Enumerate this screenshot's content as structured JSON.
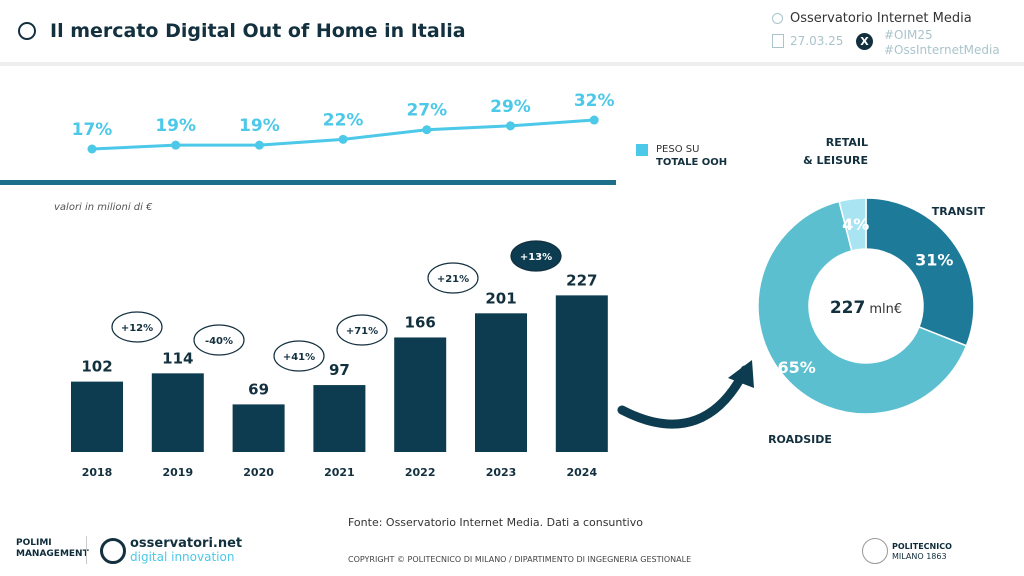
{
  "header": {
    "title": "Il mercato Digital Out of Home in Italia",
    "org": "Osservatorio Internet Media",
    "date": "27.03.25",
    "hashtag1": "#OIM25",
    "hashtag2": "#OssInternetMedia"
  },
  "colors": {
    "dark": "#0d3b4f",
    "line": "#4cc8e8",
    "transit": "#1e7a99",
    "roadside": "#5bbfd0",
    "retail": "#a8e4f2"
  },
  "chart_data": [
    {
      "type": "line",
      "x": [
        "2018",
        "2019",
        "2020",
        "2021",
        "2022",
        "2023",
        "2024"
      ],
      "values": [
        17,
        19,
        19,
        22,
        27,
        29,
        32
      ],
      "labels": [
        "17%",
        "19%",
        "19%",
        "22%",
        "27%",
        "29%",
        "32%"
      ],
      "legend": "PESO SU TOTALE OOH",
      "legend_line1": "PESO SU",
      "legend_line2": "TOTALE OOH"
    },
    {
      "type": "bar",
      "categories": [
        "2018",
        "2019",
        "2020",
        "2021",
        "2022",
        "2023",
        "2024"
      ],
      "values": [
        102,
        114,
        69,
        97,
        166,
        201,
        227
      ],
      "growth": [
        "+12%",
        "-40%",
        "+41%",
        "+71%",
        "+21%",
        "+13%"
      ],
      "unit_note": "valori in milioni di €"
    },
    {
      "type": "pie",
      "donut": true,
      "center_value": "227",
      "center_unit": "mln€",
      "slices": [
        {
          "name": "TRANSIT",
          "value": 31,
          "label": "31%"
        },
        {
          "name": "ROADSIDE",
          "value": 65,
          "label": "65%"
        },
        {
          "name": "RETAIL",
          "name2": "& LEISURE",
          "value": 4,
          "label": "4%"
        }
      ]
    }
  ],
  "footer": {
    "source": "Fonte: Osservatorio Internet Media. Dati a consuntivo",
    "copyright": "COPYRIGHT © POLITECNICO DI MILANO / DIPARTIMENTO DI INGEGNERIA GESTIONALE",
    "logo1": "POLIMI MANAGEMENT",
    "logo2a": "osservatori.net",
    "logo2b": "digital innovation",
    "logo3a": "POLITECNICO",
    "logo3b": "MILANO 1863"
  }
}
